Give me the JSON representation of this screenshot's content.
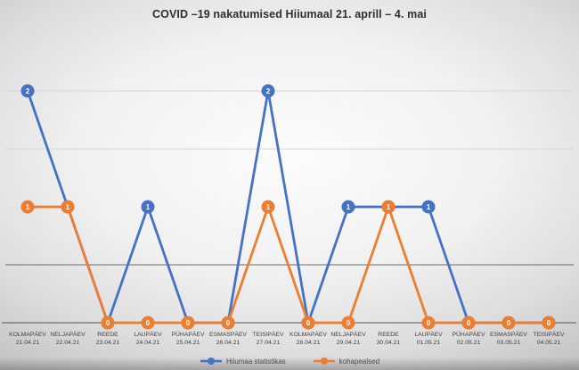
{
  "title": "COVID –19 nakatumised Hiiumaal 21. aprill – 4. mai",
  "chart_data": {
    "type": "line",
    "title": "COVID –19 nakatumised Hiiumaal 21. aprill – 4. mai",
    "categories": [
      {
        "day": "KOLMAPÄEV",
        "date": "21.04.21"
      },
      {
        "day": "NELJAPÄEV",
        "date": "22.04.21"
      },
      {
        "day": "REEDE",
        "date": "23.04.21"
      },
      {
        "day": "LAUPÄEV",
        "date": "24.04.21"
      },
      {
        "day": "PÜHAPÄEV",
        "date": "25.04.21"
      },
      {
        "day": "ESMASPÄEV",
        "date": "26.04.21"
      },
      {
        "day": "TEISIPÄEV",
        "date": "27.04.21"
      },
      {
        "day": "KOLMAPÄEV",
        "date": "28.04.21"
      },
      {
        "day": "NELJAPÄEV",
        "date": "29.04.21"
      },
      {
        "day": "REEDE",
        "date": "30.04.21"
      },
      {
        "day": "LAUPÄEV",
        "date": "01.05.21"
      },
      {
        "day": "PÜHAPÄEV",
        "date": "02.05.21"
      },
      {
        "day": "ESMASPÄEV",
        "date": "03.05.21"
      },
      {
        "day": "TEISIPÄEV",
        "date": "04.05.21"
      }
    ],
    "series": [
      {
        "name": "Hiiumaa statistikas",
        "color": "#4472C4",
        "values": [
          2,
          1,
          0,
          1,
          0,
          0,
          2,
          0,
          1,
          1,
          1,
          0,
          0,
          0
        ]
      },
      {
        "name": "kohapealsed",
        "color": "#ED7D31",
        "values": [
          1,
          1,
          0,
          0,
          0,
          0,
          1,
          0,
          0,
          1,
          0,
          0,
          0,
          0
        ]
      }
    ],
    "ylim": [
      0,
      2.5
    ],
    "gridlines": [
      {
        "value": 2.0,
        "shade": "light"
      },
      {
        "value": 1.5,
        "shade": "light"
      },
      {
        "value": 0.5,
        "shade": "dark"
      }
    ],
    "data_labels": true,
    "legend_position": "bottom",
    "colors": {
      "axis": "#555555",
      "gridline_light": "#d6d6d6",
      "gridline_dark": "#6b6b6b",
      "marker_label": "#ffffff",
      "tick_label": "#3f3f3f"
    }
  }
}
